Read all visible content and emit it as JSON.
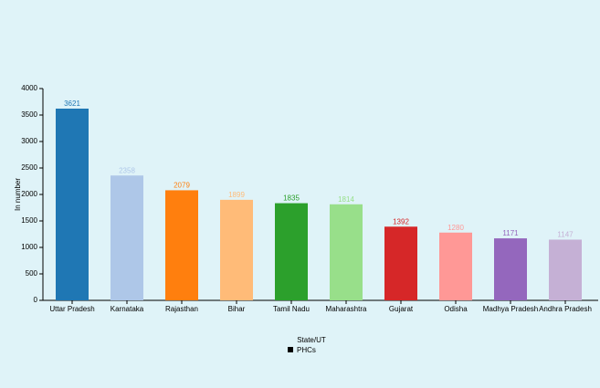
{
  "chart_data": {
    "type": "bar",
    "x_label": "State/UT",
    "y_label": "In number",
    "categories": [
      "Uttar Pradesh",
      "Karnataka",
      "Rajasthan",
      "Bihar",
      "Tamil Nadu",
      "Maharashtra",
      "Gujarat",
      "Odisha",
      "Madhya Pradesh",
      "Andhra Pradesh"
    ],
    "series": [
      {
        "name": "PHCs",
        "color": "#000000",
        "colors": [
          "#1f77b4",
          "#aec7e8",
          "#ff7f0e",
          "#ffbb78",
          "#2ca02c",
          "#98df8a",
          "#d62728",
          "#ff9896",
          "#9467bd",
          "#c5b0d5"
        ],
        "values": [
          3621,
          2358,
          2079,
          1899,
          1835,
          1814,
          1392,
          1280,
          1171,
          1147
        ]
      }
    ],
    "ylim": [
      0,
      4000
    ],
    "yticks": [
      0,
      500,
      1000,
      1500,
      2000,
      2500,
      3000,
      3500,
      4000
    ]
  }
}
